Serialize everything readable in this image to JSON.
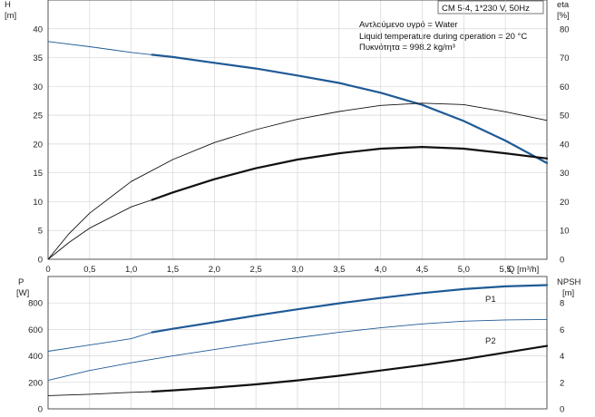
{
  "header": {
    "title": "CM 5-4, 1*230 V, 50Hz",
    "notes": [
      "Αντλούμενο υγρό = Water",
      "Liquid temperature during operation = 20 °C",
      "Πυκνότητα = 998.2 kg/m³"
    ]
  },
  "chart_data": [
    {
      "type": "line",
      "xlabel": "Q [m³/h]",
      "xticks": [
        "0",
        "0,5",
        "1,0",
        "1,5",
        "2,0",
        "2,5",
        "3,0",
        "3,5",
        "4,0",
        "4,5",
        "5,0",
        "5,5"
      ],
      "xlim": [
        0,
        6
      ],
      "y_left": {
        "label_line1": "H",
        "label_line2": "[m]",
        "lim": [
          0,
          45
        ],
        "ticks": [
          0,
          5,
          10,
          15,
          20,
          25,
          30,
          35,
          40
        ]
      },
      "y_right": {
        "label_line1": "eta",
        "label_line2": "[%]",
        "lim": [
          0,
          90
        ],
        "ticks": [
          0,
          10,
          20,
          30,
          40,
          50,
          60,
          70,
          80
        ]
      },
      "grid": true,
      "series": [
        {
          "axis": "left",
          "color": "#1f5a96",
          "x": [
            0,
            0.5,
            1.0,
            1.25,
            1.5,
            2.0,
            2.5,
            3.0,
            3.5,
            4.0,
            4.5,
            5.0,
            5.5,
            6.0
          ],
          "y": [
            37.8,
            36.9,
            35.9,
            35.5,
            35.1,
            34.1,
            33.1,
            31.9,
            30.6,
            28.9,
            26.8,
            24.0,
            20.6,
            16.7
          ],
          "bold_from": 1.25,
          "bold_to": 6.0
        },
        {
          "axis": "right",
          "color": "#111111",
          "x": [
            0,
            0.25,
            0.5,
            1.0,
            1.5,
            2.0,
            2.5,
            3.0,
            3.5,
            4.0,
            4.5,
            5.0,
            5.5,
            6.0
          ],
          "y": [
            0,
            8.8,
            16.0,
            27.0,
            34.6,
            40.5,
            45.0,
            48.6,
            51.3,
            53.4,
            54.2,
            53.7,
            51.2,
            48.2
          ],
          "bold_from": null,
          "bold_to": null
        },
        {
          "axis": "left",
          "color": "#111111",
          "x": [
            0,
            0.25,
            0.5,
            1.0,
            1.25,
            1.5,
            2.0,
            2.5,
            3.0,
            3.5,
            4.0,
            4.5,
            5.0,
            5.5,
            6.0
          ],
          "y": [
            0,
            2.9,
            5.4,
            9.1,
            10.3,
            11.6,
            13.9,
            15.8,
            17.3,
            18.4,
            19.2,
            19.5,
            19.2,
            18.4,
            17.5
          ],
          "bold_from": 1.25,
          "bold_to": 6.0
        }
      ]
    },
    {
      "type": "line",
      "xlim": [
        0,
        6
      ],
      "y_left": {
        "label_line1": "P",
        "label_line2": "[W]",
        "lim": [
          0,
          1000
        ],
        "ticks": [
          0,
          200,
          400,
          600,
          800
        ]
      },
      "y_right": {
        "label_line1": "NPSH",
        "label_line2": "[m]",
        "lim": [
          0,
          10
        ],
        "ticks": [
          0,
          2,
          4,
          6,
          8
        ]
      },
      "grid": true,
      "series": [
        {
          "name": "P1",
          "axis": "left",
          "color": "#1f5a96",
          "x": [
            0,
            0.5,
            1.0,
            1.25,
            1.5,
            2.0,
            2.5,
            3.0,
            3.5,
            4.0,
            4.5,
            5.0,
            5.5,
            6.0
          ],
          "y": [
            435,
            482,
            530,
            578,
            605,
            655,
            705,
            752,
            797,
            838,
            875,
            905,
            925,
            935
          ],
          "bold_from": 1.25,
          "bold_to": 6.0
        },
        {
          "name": "P2",
          "axis": "left",
          "color": "#1f5a96",
          "x": [
            0,
            0.5,
            1.0,
            1.5,
            2.0,
            2.5,
            3.0,
            3.5,
            4.0,
            4.5,
            5.0,
            5.5,
            6.0
          ],
          "y": [
            215,
            290,
            348,
            400,
            448,
            495,
            538,
            578,
            612,
            642,
            662,
            672,
            675
          ],
          "bold_from": null,
          "bold_to": null
        },
        {
          "axis": "right",
          "color": "#111111",
          "x": [
            0,
            0.5,
            1.0,
            1.25,
            1.5,
            2.0,
            2.5,
            3.0,
            3.5,
            4.0,
            4.5,
            5.0,
            5.5,
            6.0
          ],
          "y": [
            1.0,
            1.1,
            1.25,
            1.3,
            1.4,
            1.6,
            1.85,
            2.15,
            2.5,
            2.9,
            3.3,
            3.75,
            4.25,
            4.75
          ],
          "bold_from": 1.25,
          "bold_to": 6.0
        }
      ]
    }
  ]
}
